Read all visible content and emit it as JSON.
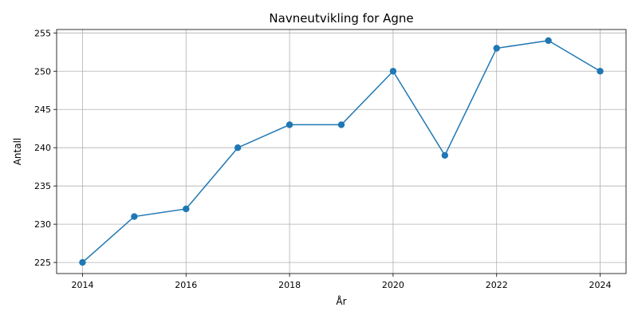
{
  "chart_data": {
    "type": "line",
    "title": "Navneutvikling for Agne",
    "xlabel": "År",
    "ylabel": "Antall",
    "x": [
      2014,
      2015,
      2016,
      2017,
      2018,
      2019,
      2020,
      2021,
      2022,
      2023,
      2024
    ],
    "series": [
      {
        "values": [
          225,
          231,
          232,
          240,
          243,
          243,
          250,
          239,
          253,
          254,
          250
        ],
        "color": "#1f77b4",
        "marker": "circle"
      }
    ],
    "xlim": [
      2013.5,
      2024.5
    ],
    "ylim": [
      223.55,
      255.45
    ],
    "xticks": [
      2014,
      2016,
      2018,
      2020,
      2022,
      2024
    ],
    "yticks": [
      225,
      230,
      235,
      240,
      245,
      250,
      255
    ],
    "grid": true,
    "legend": "none"
  }
}
